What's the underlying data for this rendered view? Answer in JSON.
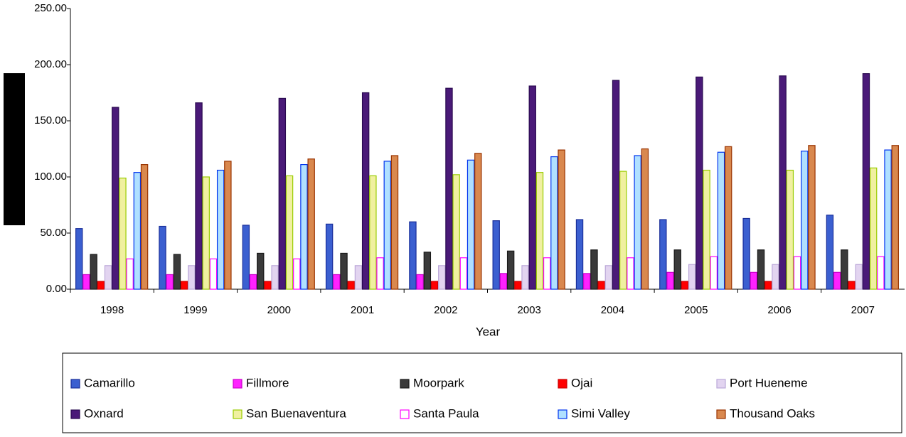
{
  "chart_data": {
    "type": "bar",
    "x_label": "Year",
    "categories": [
      "1998",
      "1999",
      "2000",
      "2001",
      "2002",
      "2003",
      "2004",
      "2005",
      "2006",
      "2007"
    ],
    "series": [
      {
        "name": "Camarillo",
        "color": "#3b5fd0",
        "edgecolor": "#1a2f9a",
        "values": [
          54,
          56,
          57,
          58,
          60,
          61,
          62,
          62,
          63,
          66
        ]
      },
      {
        "name": "Fillmore",
        "color": "#ff22ff",
        "edgecolor": "#cc00cc",
        "values": [
          13,
          13,
          13,
          13,
          13,
          14,
          14,
          15,
          15,
          15
        ]
      },
      {
        "name": "Moorpark",
        "color": "#3a3a3a",
        "edgecolor": "#1a1a1a",
        "values": [
          31,
          31,
          32,
          32,
          33,
          34,
          35,
          35,
          35,
          35
        ]
      },
      {
        "name": "Ojai",
        "color": "#ff0000",
        "edgecolor": "#cc0000",
        "values": [
          7,
          7,
          7,
          7,
          7,
          7,
          7,
          7,
          7,
          7
        ]
      },
      {
        "name": "Port Hueneme",
        "color": "#e2d4f0",
        "edgecolor": "#bba8d8",
        "values": [
          21,
          21,
          21,
          21,
          21,
          21,
          21,
          22,
          22,
          22
        ]
      },
      {
        "name": "Oxnard",
        "color": "#4a1a78",
        "edgecolor": "#2a0a50",
        "values": [
          162,
          166,
          170,
          175,
          179,
          181,
          186,
          189,
          190,
          192
        ]
      },
      {
        "name": "San Buenaventura",
        "color": "#f0f0a0",
        "edgecolor": "#99cc00",
        "values": [
          99,
          100,
          101,
          101,
          102,
          104,
          105,
          106,
          106,
          108
        ]
      },
      {
        "name": "Santa Paula",
        "color": "#ffffff",
        "edgecolor": "#ff00ff",
        "values": [
          27,
          27,
          27,
          28,
          28,
          28,
          28,
          29,
          29,
          29
        ]
      },
      {
        "name": "Simi Valley",
        "color": "#b0e0ff",
        "edgecolor": "#0033ee",
        "values": [
          104,
          106,
          111,
          114,
          115,
          118,
          119,
          122,
          123,
          124
        ]
      },
      {
        "name": "Thousand Oaks",
        "color": "#d9884e",
        "edgecolor": "#993300",
        "values": [
          111,
          114,
          116,
          119,
          121,
          124,
          125,
          127,
          128,
          128
        ]
      }
    ],
    "ylim": [
      0,
      250
    ],
    "yticks": [
      {
        "value": 0,
        "label": "0.00"
      },
      {
        "value": 50,
        "label": "50.00"
      },
      {
        "value": 100,
        "label": "100.00"
      },
      {
        "value": 150,
        "label": "150.00"
      },
      {
        "value": 200,
        "label": "200.00"
      },
      {
        "value": 250,
        "label": "250.00"
      }
    ],
    "grid": false,
    "legend": "bottom"
  }
}
